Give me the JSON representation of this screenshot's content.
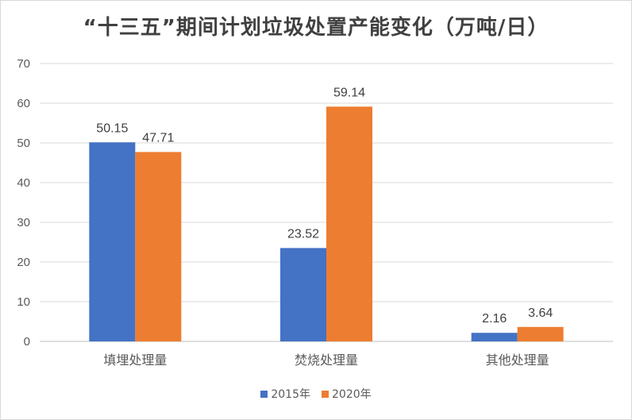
{
  "chart_data": {
    "type": "bar",
    "title": "“十三五”期间计划垃圾处置产能变化（万吨/日）",
    "categories": [
      "填埋处理量",
      "焚烧处理量",
      "其他处理量"
    ],
    "series": [
      {
        "name": "2015年",
        "values": [
          50.15,
          23.52,
          2.16
        ],
        "color": "#4472c4"
      },
      {
        "name": "2020年",
        "values": [
          47.71,
          59.14,
          3.64
        ],
        "color": "#ed7d31"
      }
    ],
    "ylim": [
      0,
      70
    ],
    "yticks": [
      0,
      10,
      20,
      30,
      40,
      50,
      60,
      70
    ],
    "grid": true,
    "legend": "bottom",
    "data_labels": true
  }
}
